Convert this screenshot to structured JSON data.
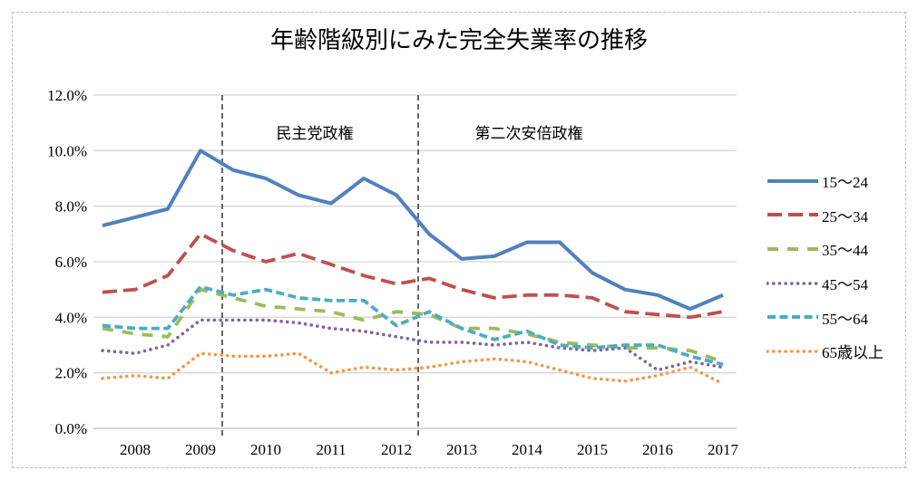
{
  "title": "年齢階級別にみた完全失業率の推移",
  "chart_data": {
    "type": "line",
    "unit": "%",
    "x_labels": [
      "2008",
      "2009",
      "2010",
      "2011",
      "2012",
      "2013",
      "2014",
      "2015",
      "2016",
      "2017"
    ],
    "points_per_year": 2,
    "x_note": "two data points per year (half-year values)",
    "y_ticks": [
      "0.0%",
      "2.0%",
      "4.0%",
      "6.0%",
      "8.0%",
      "10.0%",
      "12.0%"
    ],
    "ylim": [
      0,
      12
    ],
    "grid": "horizontal",
    "legend_position": "right",
    "series": [
      {
        "name": "15〜24",
        "color": "#4F81BD",
        "style": "solid",
        "values": [
          7.3,
          7.6,
          7.9,
          10.0,
          9.3,
          9.0,
          8.4,
          8.1,
          9.0,
          8.4,
          7.0,
          6.1,
          6.2,
          6.7,
          6.7,
          5.6,
          5.0,
          4.8,
          4.3,
          4.8
        ]
      },
      {
        "name": "25〜34",
        "color": "#C0504D",
        "style": "longdash",
        "values": [
          4.9,
          5.0,
          5.5,
          7.0,
          6.4,
          6.0,
          6.3,
          5.9,
          5.5,
          5.2,
          5.4,
          5.0,
          4.7,
          4.8,
          4.8,
          4.7,
          4.2,
          4.1,
          4.0,
          4.2
        ]
      },
      {
        "name": "35〜44",
        "color": "#9BBB59",
        "style": "sparsedash",
        "values": [
          3.6,
          3.4,
          3.3,
          5.0,
          4.7,
          4.4,
          4.3,
          4.2,
          3.9,
          4.2,
          4.1,
          3.6,
          3.6,
          3.4,
          3.1,
          3.0,
          2.9,
          2.9,
          2.8,
          2.4
        ]
      },
      {
        "name": "45〜54",
        "color": "#8064A2",
        "style": "dot",
        "values": [
          2.8,
          2.7,
          3.0,
          3.9,
          3.9,
          3.9,
          3.8,
          3.6,
          3.5,
          3.3,
          3.1,
          3.1,
          3.0,
          3.1,
          2.9,
          2.8,
          2.9,
          2.1,
          2.4,
          2.2
        ]
      },
      {
        "name": "55〜64",
        "color": "#4BACC6",
        "style": "dash",
        "values": [
          3.7,
          3.6,
          3.6,
          5.1,
          4.8,
          5.0,
          4.7,
          4.6,
          4.6,
          3.7,
          4.2,
          3.6,
          3.2,
          3.5,
          3.0,
          2.9,
          3.0,
          3.0,
          2.6,
          2.3
        ]
      },
      {
        "name": "65歳以上",
        "color": "#F79646",
        "style": "dot",
        "values": [
          1.8,
          1.9,
          1.8,
          2.7,
          2.6,
          2.6,
          2.7,
          2.0,
          2.2,
          2.1,
          2.2,
          2.4,
          2.5,
          2.4,
          2.1,
          1.8,
          1.7,
          1.9,
          2.2,
          1.6
        ]
      }
    ],
    "era_annotations": [
      {
        "label": "民主党政権",
        "line_x": 245,
        "label_cx": 347
      },
      {
        "label": "第二次安倍政権",
        "line_x": 461,
        "label_cx": 583
      }
    ],
    "colors": {
      "gridline": "#d6d6d6",
      "axis_line": "#bfbfbf",
      "era_divider": "#404040",
      "border": "#b8b8b8"
    }
  }
}
